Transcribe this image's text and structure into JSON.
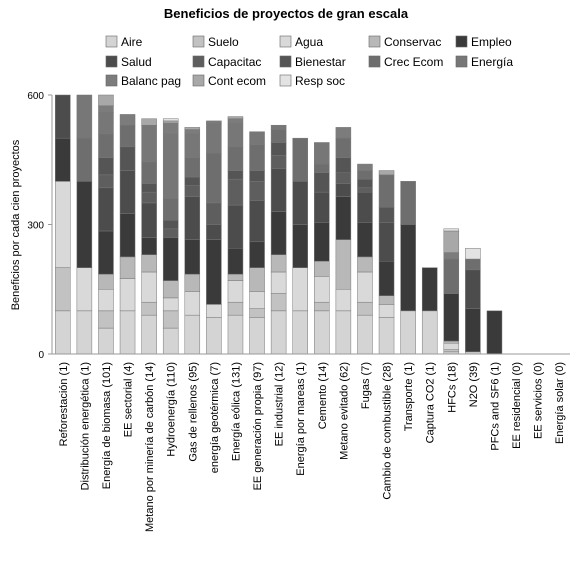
{
  "chart_data": {
    "type": "bar",
    "stacked": true,
    "title": "Beneficios de proyectos de gran escala",
    "xlabel": "",
    "ylabel": "Beneficios por cada cien proyectos",
    "ylim": [
      0,
      600
    ],
    "yticks": [
      0,
      300,
      600
    ],
    "grid": false,
    "legend_position": "top",
    "categories": [
      "Reforestación (1)",
      "Distribución energética (1)",
      "Energía de biomasa (101)",
      "EE sectorial (4)",
      "Metano por minería de carbón (14)",
      "Hydroenergía (110)",
      "Gas de rellenos (95)",
      "energía geotérmica (7)",
      "Energía eólica (131)",
      "EE generación propia (97)",
      "EE industrial (12)",
      "Energía por mareas (1)",
      "Cemento (14)",
      "Metano evitado (62)",
      "Fugas (7)",
      "Cambio de combustible (28)",
      "Transporte (1)",
      "Captura CO2 (1)",
      "HFCs (18)",
      "N2O (39)",
      "PFCs and SF6 (1)",
      "EE residencial (0)",
      "EE servicios (0)",
      "Energía solar (0)"
    ],
    "series": [
      {
        "name": "Aire",
        "color": "#d4d4d4",
        "values": [
          100,
          100,
          60,
          100,
          90,
          60,
          90,
          85,
          90,
          85,
          100,
          100,
          100,
          100,
          90,
          85,
          100,
          100,
          5,
          5,
          0,
          0,
          0,
          0
        ]
      },
      {
        "name": "Suelo",
        "color": "#c2c2c2",
        "values": [
          100,
          0,
          40,
          0,
          30,
          40,
          0,
          0,
          30,
          20,
          40,
          0,
          20,
          0,
          30,
          0,
          0,
          0,
          5,
          0,
          0,
          0,
          0,
          0
        ]
      },
      {
        "name": "Agua",
        "color": "#d9d9d9",
        "values": [
          200,
          100,
          50,
          75,
          70,
          30,
          55,
          30,
          50,
          40,
          50,
          100,
          60,
          50,
          70,
          30,
          0,
          0,
          15,
          0,
          0,
          0,
          0,
          0
        ]
      },
      {
        "name": "Conservac",
        "color": "#b8b8b8",
        "values": [
          0,
          0,
          35,
          50,
          40,
          40,
          40,
          0,
          15,
          55,
          40,
          0,
          35,
          115,
          35,
          20,
          0,
          0,
          5,
          0,
          0,
          0,
          0,
          0
        ]
      },
      {
        "name": "Empleo",
        "color": "#3a3a3a",
        "values": [
          100,
          200,
          100,
          100,
          40,
          100,
          80,
          150,
          60,
          60,
          100,
          100,
          90,
          100,
          80,
          80,
          200,
          100,
          110,
          100,
          100,
          0,
          0,
          0
        ]
      },
      {
        "name": "Salud",
        "color": "#4c4c4c",
        "values": [
          100,
          0,
          100,
          100,
          80,
          0,
          100,
          35,
          100,
          95,
          100,
          100,
          70,
          30,
          70,
          90,
          0,
          0,
          0,
          90,
          0,
          0,
          0,
          0
        ]
      },
      {
        "name": "Capacitac",
        "color": "#5e5e5e",
        "values": [
          0,
          0,
          30,
          0,
          25,
          20,
          25,
          50,
          60,
          45,
          30,
          0,
          0,
          25,
          10,
          0,
          0,
          0,
          0,
          0,
          0,
          0,
          0,
          0
        ]
      },
      {
        "name": "Bienestar",
        "color": "#555555",
        "values": [
          0,
          0,
          40,
          55,
          20,
          20,
          20,
          0,
          20,
          25,
          30,
          0,
          45,
          35,
          20,
          35,
          0,
          0,
          0,
          0,
          0,
          0,
          0,
          0
        ]
      },
      {
        "name": "Crec Ecom",
        "color": "#6e6e6e",
        "values": [
          0,
          100,
          55,
          50,
          50,
          50,
          45,
          115,
          55,
          60,
          30,
          100,
          20,
          45,
          20,
          75,
          100,
          0,
          80,
          25,
          0,
          0,
          0,
          0
        ]
      },
      {
        "name": "Energía",
        "color": "#777777",
        "values": [
          0,
          100,
          50,
          0,
          85,
          150,
          55,
          70,
          55,
          30,
          10,
          0,
          50,
          0,
          0,
          0,
          0,
          0,
          0,
          0,
          0,
          0,
          0,
          0
        ]
      },
      {
        "name": "Balanc pag",
        "color": "#7c7c7c",
        "values": [
          0,
          0,
          15,
          25,
          0,
          25,
          10,
          5,
          10,
          0,
          0,
          0,
          0,
          25,
          15,
          0,
          0,
          0,
          15,
          0,
          0,
          0,
          0,
          0
        ]
      },
      {
        "name": "Cont ecom",
        "color": "#a8a8a8",
        "values": [
          0,
          0,
          25,
          0,
          15,
          5,
          5,
          0,
          5,
          0,
          0,
          0,
          0,
          0,
          0,
          10,
          0,
          0,
          50,
          0,
          0,
          0,
          0,
          0
        ]
      },
      {
        "name": "Resp soc",
        "color": "#e3e3e3",
        "values": [
          0,
          0,
          0,
          0,
          0,
          5,
          0,
          0,
          0,
          0,
          0,
          0,
          0,
          0,
          0,
          0,
          0,
          0,
          5,
          25,
          0,
          0,
          0,
          0
        ]
      }
    ]
  }
}
